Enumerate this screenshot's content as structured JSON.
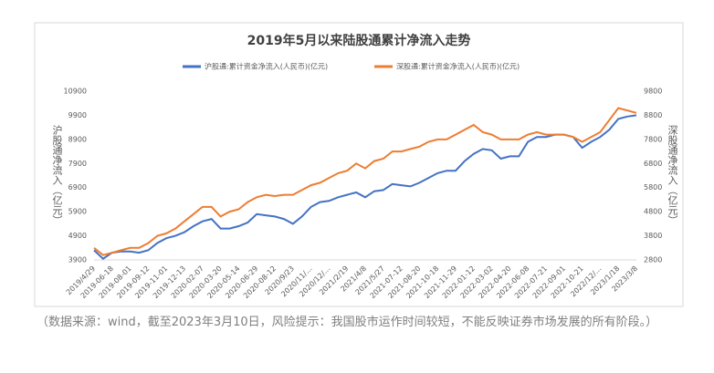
{
  "chart_data": {
    "type": "line",
    "title": "2019年5月以来陆股通累计净流入走势",
    "y_label": "沪股通净流入（亿元）",
    "y2_label": "深股通净流入（亿元）",
    "categories": [
      "2019/4/29",
      null,
      "2019-06-18",
      null,
      "2019-08-01",
      null,
      "2019-09-12",
      null,
      "2019-11-01",
      null,
      "2019-12-13",
      null,
      "2020-02-07",
      null,
      "2020-03-20",
      null,
      "2020-05-14",
      null,
      "2020-06-29",
      null,
      "2020-08-12",
      null,
      "2020/9/23",
      null,
      "2020/11/…",
      null,
      "2020/12/…",
      null,
      "2021/2/19",
      null,
      "2021/4/8",
      null,
      "2021/5/27",
      null,
      "2021-07-12",
      null,
      "2021-08-20",
      null,
      "2021-10-18",
      null,
      "2021-11-29",
      null,
      "2022-01-12",
      null,
      "2022-03-02",
      null,
      "2022-04-20",
      null,
      "2022-06-08",
      null,
      "2022-07-21",
      null,
      "2022-09-01",
      null,
      "2022-10-21",
      null,
      "2022/12/…",
      null,
      "2023/1/18",
      null,
      "2023/3/8"
    ],
    "series": [
      {
        "name": "沪股通:累计资金净流入(人民币)(亿元)",
        "color": "#4472c4",
        "axis": "y",
        "values": [
          4300,
          3950,
          4200,
          4250,
          4250,
          4200,
          4300,
          4600,
          4800,
          4900,
          5050,
          5300,
          5500,
          5600,
          5200,
          5200,
          5300,
          5450,
          5800,
          5750,
          5700,
          5600,
          5400,
          5700,
          6100,
          6300,
          6350,
          6500,
          6600,
          6700,
          6500,
          6750,
          6800,
          7050,
          7000,
          6950,
          7100,
          7300,
          7500,
          7600,
          7600,
          8000,
          8300,
          8500,
          8450,
          8100,
          8200,
          8200,
          8800,
          9000,
          9000,
          9100,
          9100,
          9000,
          8550,
          8800,
          9000,
          9300,
          9750,
          9850,
          9900
        ]
      },
      {
        "name": "深股通:累计资金净流入(人民币)(亿元)",
        "color": "#ed7d31",
        "axis": "y2",
        "values": [
          3300,
          3000,
          3100,
          3200,
          3300,
          3300,
          3500,
          3800,
          3900,
          4100,
          4400,
          4700,
          5000,
          5000,
          4600,
          4800,
          4900,
          5200,
          5400,
          5500,
          5450,
          5500,
          5500,
          5700,
          5900,
          6000,
          6200,
          6400,
          6500,
          6800,
          6600,
          6900,
          7000,
          7300,
          7300,
          7400,
          7500,
          7700,
          7800,
          7800,
          8000,
          8200,
          8400,
          8100,
          8000,
          7800,
          7800,
          7800,
          8000,
          8100,
          8000,
          8000,
          8000,
          7900,
          7700,
          7900,
          8100,
          8600,
          9100,
          9000,
          8900
        ]
      }
    ],
    "ylim": [
      3900,
      10900
    ],
    "yticks": [
      3900,
      4900,
      5900,
      6900,
      7900,
      8900,
      9900,
      10900
    ],
    "y2lim": [
      2800,
      9800
    ],
    "y2ticks": [
      2800,
      3800,
      4800,
      5800,
      6800,
      7800,
      8800,
      9800
    ],
    "legend": "top"
  },
  "note": "（数据来源：wind，截至2023年3月10日，风险提示：我国股市运作时间较短，不能反映证券市场发展的所有阶段。）"
}
